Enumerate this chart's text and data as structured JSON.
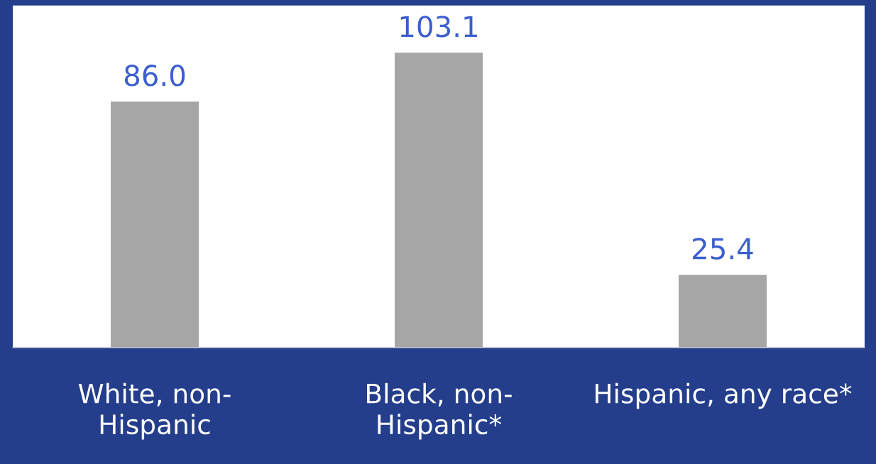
{
  "chart_data": {
    "type": "bar",
    "categories": [
      "White, non-Hispanic",
      "Black, non-Hispanic*",
      "Hispanic, any race*"
    ],
    "values": [
      86.0,
      103.1,
      25.4
    ],
    "color": "#a6a6a6",
    "value_labels": [
      "86.0",
      "103.1",
      "25.4"
    ],
    "grid": false,
    "legend": false
  }
}
